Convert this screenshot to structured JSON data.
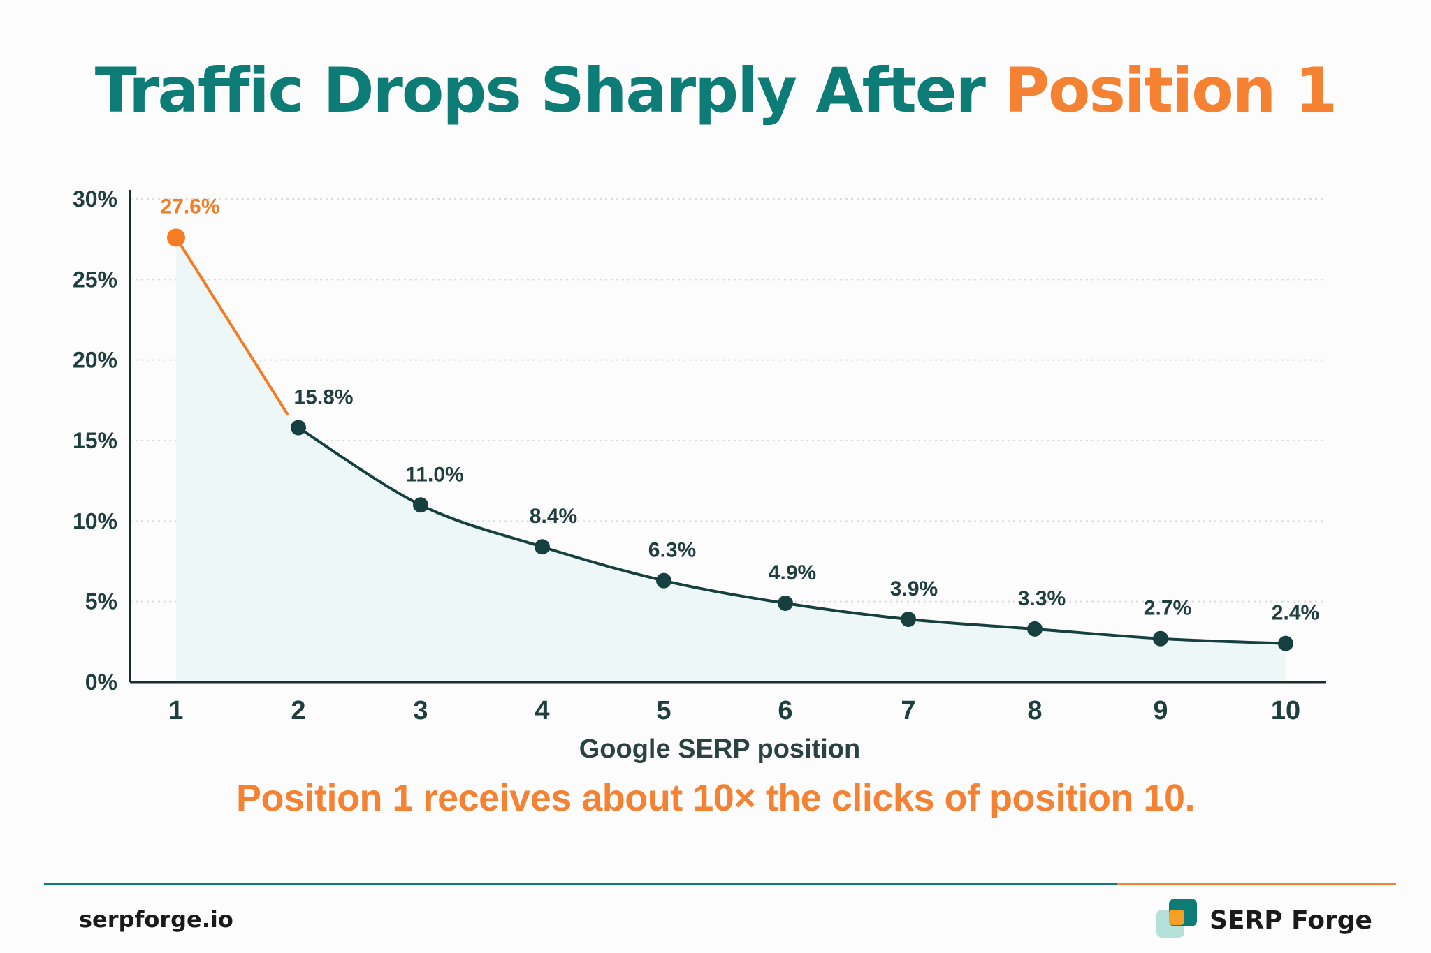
{
  "header": {
    "title_main": "Traffic Drops Sharply After",
    "title_accent": "Position 1"
  },
  "chart_data": {
    "type": "line",
    "title": "Traffic Drops Sharply After Position 1",
    "xlabel": "Google SERP position",
    "ylabel": "",
    "x": [
      1,
      2,
      3,
      4,
      5,
      6,
      7,
      8,
      9,
      10
    ],
    "y_ticks": [
      "0%",
      "5%",
      "10%",
      "15%",
      "20%",
      "25%",
      "30%"
    ],
    "ylim": [
      0,
      30
    ],
    "grid": "horizontal dotted",
    "series": [
      {
        "values": [
          27.6,
          15.8,
          11.0,
          8.4,
          6.3,
          4.9,
          3.9,
          3.3,
          2.7,
          2.4
        ],
        "labels": [
          "27.6%",
          "15.8%",
          "11.0%",
          "8.4%",
          "6.3%",
          "4.9%",
          "3.9%",
          "3.3%",
          "2.7%",
          "2.4%"
        ]
      }
    ],
    "highlight_index": 0,
    "colors": {
      "line": "#15403f",
      "highlight": "#f57c22",
      "fill": "#eef7f8",
      "axis": "#1a2e2e",
      "grid": "#dcdcdc"
    }
  },
  "callout": "Position 1 receives about 10× the clicks of position 10.",
  "footer": {
    "site": "serpforge.io",
    "brand": "SERP Forge"
  }
}
